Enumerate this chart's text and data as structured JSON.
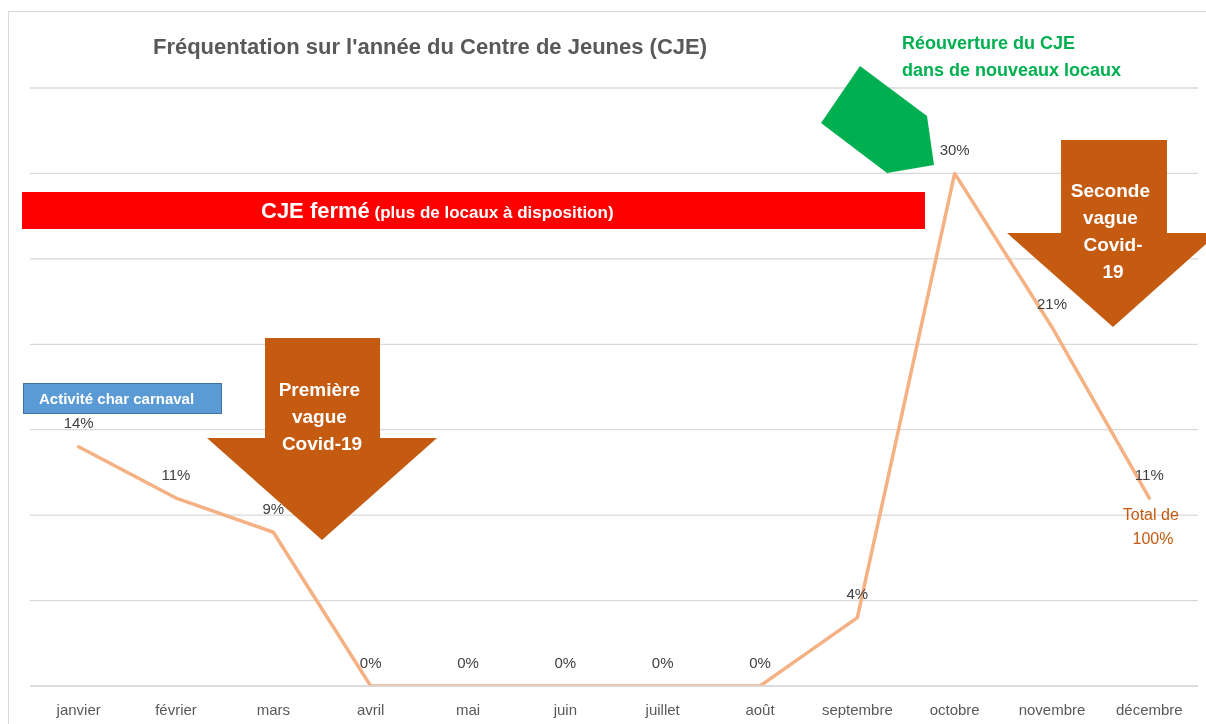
{
  "chart_data": {
    "type": "line",
    "title": "Fréquentation sur l'année du Centre de Jeunes (CJE)",
    "categories": [
      "janvier",
      "février",
      "mars",
      "avril",
      "mai",
      "juin",
      "juillet",
      "août",
      "septembre",
      "octobre",
      "novembre",
      "décembre"
    ],
    "values": [
      14,
      11,
      9,
      0,
      0,
      0,
      0,
      0,
      4,
      30,
      21,
      11
    ],
    "color": "#f4b183",
    "value_labels": [
      "14%",
      "11%",
      "9%",
      "0%",
      "0%",
      "0%",
      "0%",
      "0%",
      "4%",
      "30%",
      "21%",
      "11%"
    ],
    "ylim": [
      0,
      35
    ],
    "yticks": [
      {
        "value": 0,
        "label": null
      },
      {
        "value": 5,
        "label": null
      },
      {
        "value": 10,
        "label": null
      },
      {
        "value": 15,
        "label": null
      },
      {
        "value": 20,
        "label": null
      },
      {
        "value": 25,
        "label": null
      },
      {
        "value": 30,
        "label": null
      },
      {
        "value": 35,
        "label": null
      }
    ],
    "tick_labels": "x",
    "grid": "y",
    "line_style": "solid",
    "annotations": [
      "Activité char carnaval",
      "Première vague Covid-19",
      "CJE fermé (plus de locaux à disposition)",
      "Réouverture du CJE\ndans de nouveaux locaux",
      "Seconde vague Covid-19",
      "Total de 100%"
    ]
  }
}
